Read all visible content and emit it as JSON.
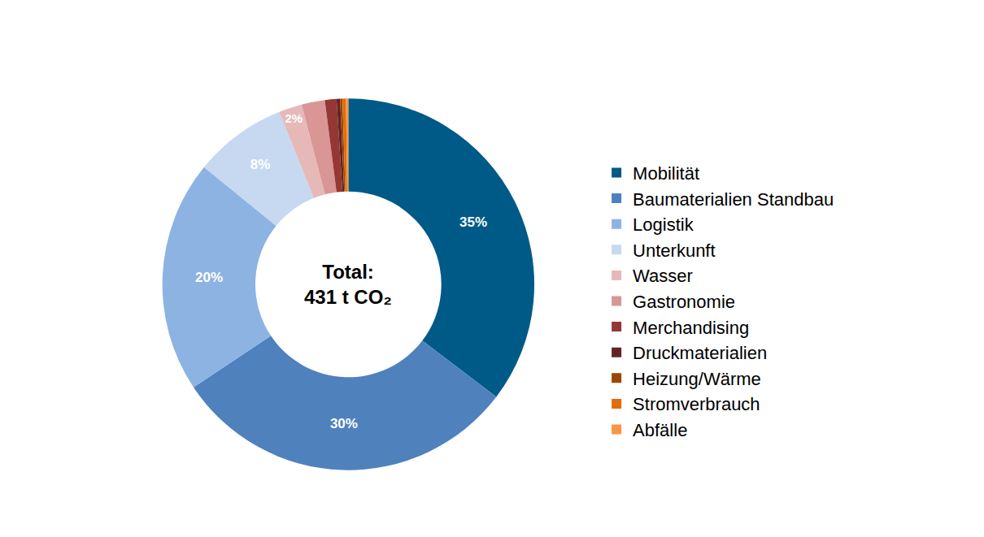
{
  "chart_data": {
    "type": "pie",
    "annotations": [
      "Total:",
      "431 t CO₂"
    ],
    "categories": [
      "Mobilität",
      "Baumaterialien Standbau",
      "Logistik",
      "Unterkunft",
      "Wasser",
      "Gastronomie",
      "Merchandising",
      "Druckmaterialien",
      "Heizung/Wärme",
      "Stromverbrauch",
      "Abfälle"
    ],
    "values": [
      35,
      30,
      20,
      8,
      2,
      2,
      1,
      0.3,
      0.2,
      0.3,
      0.2
    ],
    "value_labels": [
      "35%",
      "30%",
      "20%",
      "8%",
      "2%",
      null,
      null,
      null,
      null,
      null,
      null
    ],
    "colors": [
      "#005a87",
      "#4f81bd",
      "#8db3e2",
      "#c6d9f1",
      "#e6b9b8",
      "#d99694",
      "#953735",
      "#632523",
      "#984807",
      "#e46c0a",
      "#f79646"
    ],
    "data_labels": true,
    "legend": "right"
  }
}
